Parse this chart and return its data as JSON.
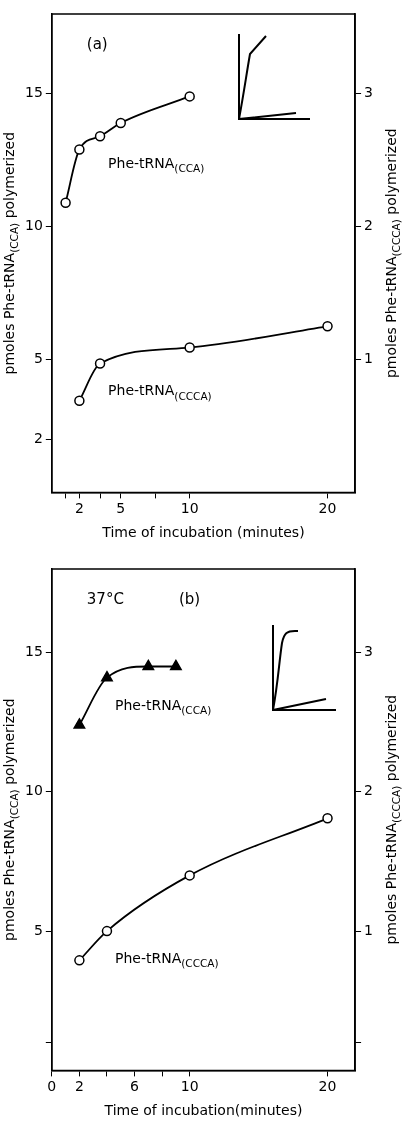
{
  "chart_data": [
    {
      "type": "line",
      "xlabel": "Time of incubation (minutes)",
      "ylabel": "pmoles Phe-tRNA$_{(CCA)}$ polymerized",
      "y2label": "pmoles Phe-tRNA$_{(CCCA)}$ polymerized",
      "annotations": [
        "(a)"
      ],
      "xlim": [
        0,
        22
      ],
      "xticks": [
        {
          "value": 1,
          "label": null
        },
        2,
        {
          "value": 3.5,
          "label": null
        },
        5,
        {
          "value": 7.5,
          "label": null
        },
        10,
        20
      ],
      "ylim": [
        0,
        18
      ],
      "yticks": [
        2,
        5,
        10,
        15
      ],
      "y2lim": [
        0,
        3.6
      ],
      "y2ticks": [
        1,
        2,
        3
      ],
      "grid": false,
      "legend": false,
      "series": [
        {
          "name": "Phe-tRNA$_{(CCA)}$",
          "color": "#000000",
          "marker": "circle",
          "x": [
            1,
            2,
            3.5,
            5,
            10
          ],
          "values": [
            10.9,
            12.9,
            13.4,
            13.9,
            14.9
          ]
        },
        {
          "name": "Phe-tRNA$_{(CCCA)}$",
          "color": "#000000",
          "marker": "circle",
          "axis": "y2",
          "x": [
            2,
            3.5,
            10,
            20
          ],
          "values": [
            0.69,
            0.97,
            1.09,
            1.25
          ]
        }
      ]
    },
    {
      "type": "line",
      "xlabel": "Time of incubation(minutes)",
      "ylabel": "pmoles Phe-tRNA$_{(CCA)}$ polymerized",
      "y2label": "pmoles Phe-tRNA$_{(CCCA)}$ polymerized",
      "annotations": [
        "37°C",
        "(b)"
      ],
      "xlim": [
        0,
        22
      ],
      "xticks": [
        0,
        2,
        {
          "value": 4,
          "label": null
        },
        6,
        {
          "value": 8,
          "label": null
        },
        10,
        20
      ],
      "ylim": [
        0,
        18
      ],
      "yticks": [
        {
          "value": 1,
          "label": null
        },
        5,
        10,
        15
      ],
      "y2lim": [
        0,
        3.6
      ],
      "y2ticks": [
        {
          "value": 0.2,
          "label": null
        },
        1,
        2,
        3
      ],
      "grid": false,
      "legend": false,
      "series": [
        {
          "name": "Phe-tRNA$_{(CCA)}$",
          "color": "#000000",
          "marker": "triangle",
          "x": [
            2,
            4,
            7,
            9
          ],
          "values": [
            12.4,
            14.1,
            14.5,
            14.5
          ]
        },
        {
          "name": "Phe-tRNA$_{(CCCA)}$",
          "color": "#000000",
          "marker": "circle",
          "axis": "y2",
          "x": [
            2,
            4,
            10,
            20
          ],
          "values": [
            0.79,
            1.0,
            1.4,
            1.81
          ]
        }
      ]
    }
  ]
}
